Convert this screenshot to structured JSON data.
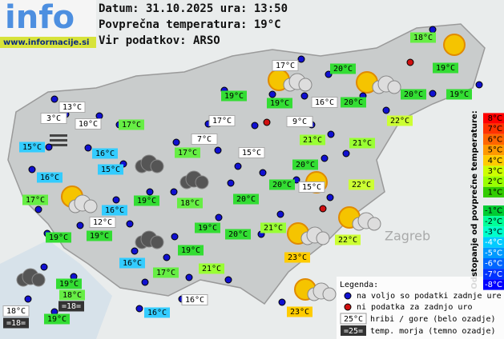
{
  "header": {
    "logo": "info",
    "site": "www.informacije.si",
    "date": "Datum: 31.10.2025 ura: 13:50",
    "average": "Povprečna temperatura: 19°C",
    "source": "Vir podatkov: ARSO"
  },
  "map": {
    "labels": [
      "Zagreb"
    ],
    "stations": [
      "18°C",
      "19°C",
      "17°C",
      "20°C",
      "19°C",
      "19°C",
      "16°C",
      "20°C",
      "20°C",
      "19°C",
      "13°C",
      "3°C",
      "10°C",
      "17°C",
      "17°C",
      "9°C",
      "22°C",
      "15°C",
      "7°C",
      "21°C",
      "21°C",
      "16°C",
      "17°C",
      "15°C",
      "15°C",
      "20°C",
      "16°C",
      "20°C",
      "15°C",
      "22°C",
      "17°C",
      "19°C",
      "18°C",
      "20°C",
      "16°C",
      "12°C",
      "19°C",
      "21°C",
      "20°C",
      "19°C",
      "19°C",
      "22°C",
      "19°C",
      "23°C",
      "16°C",
      "17°C",
      "21°C",
      "19°C",
      "18°C",
      "18°C",
      "=18=",
      "16°C",
      "23°C",
      "16°C",
      "=18=",
      "19°C"
    ]
  },
  "scale": {
    "title": "Odstopanje od povprečne temperature:",
    "labels": [
      "8°C",
      "7°C",
      "6°C",
      "5°C",
      "4°C",
      "3°C",
      "2°C",
      "1°C",
      "-1°C",
      "-2°C",
      "-3°C",
      "-4°C",
      "-5°C",
      "-6°C",
      "-7°C",
      "-8°C"
    ]
  },
  "legend": {
    "title": "Legenda:",
    "available": "na voljo so podatki zadnje ure",
    "missing": "ni podatka za zadnjo uro",
    "mountain": {
      "sample": "25°C",
      "text": "hribi / gore (belo ozadje)"
    },
    "sea": {
      "sample": "=25=",
      "text": "temp. morja (temno ozadje)"
    }
  }
}
